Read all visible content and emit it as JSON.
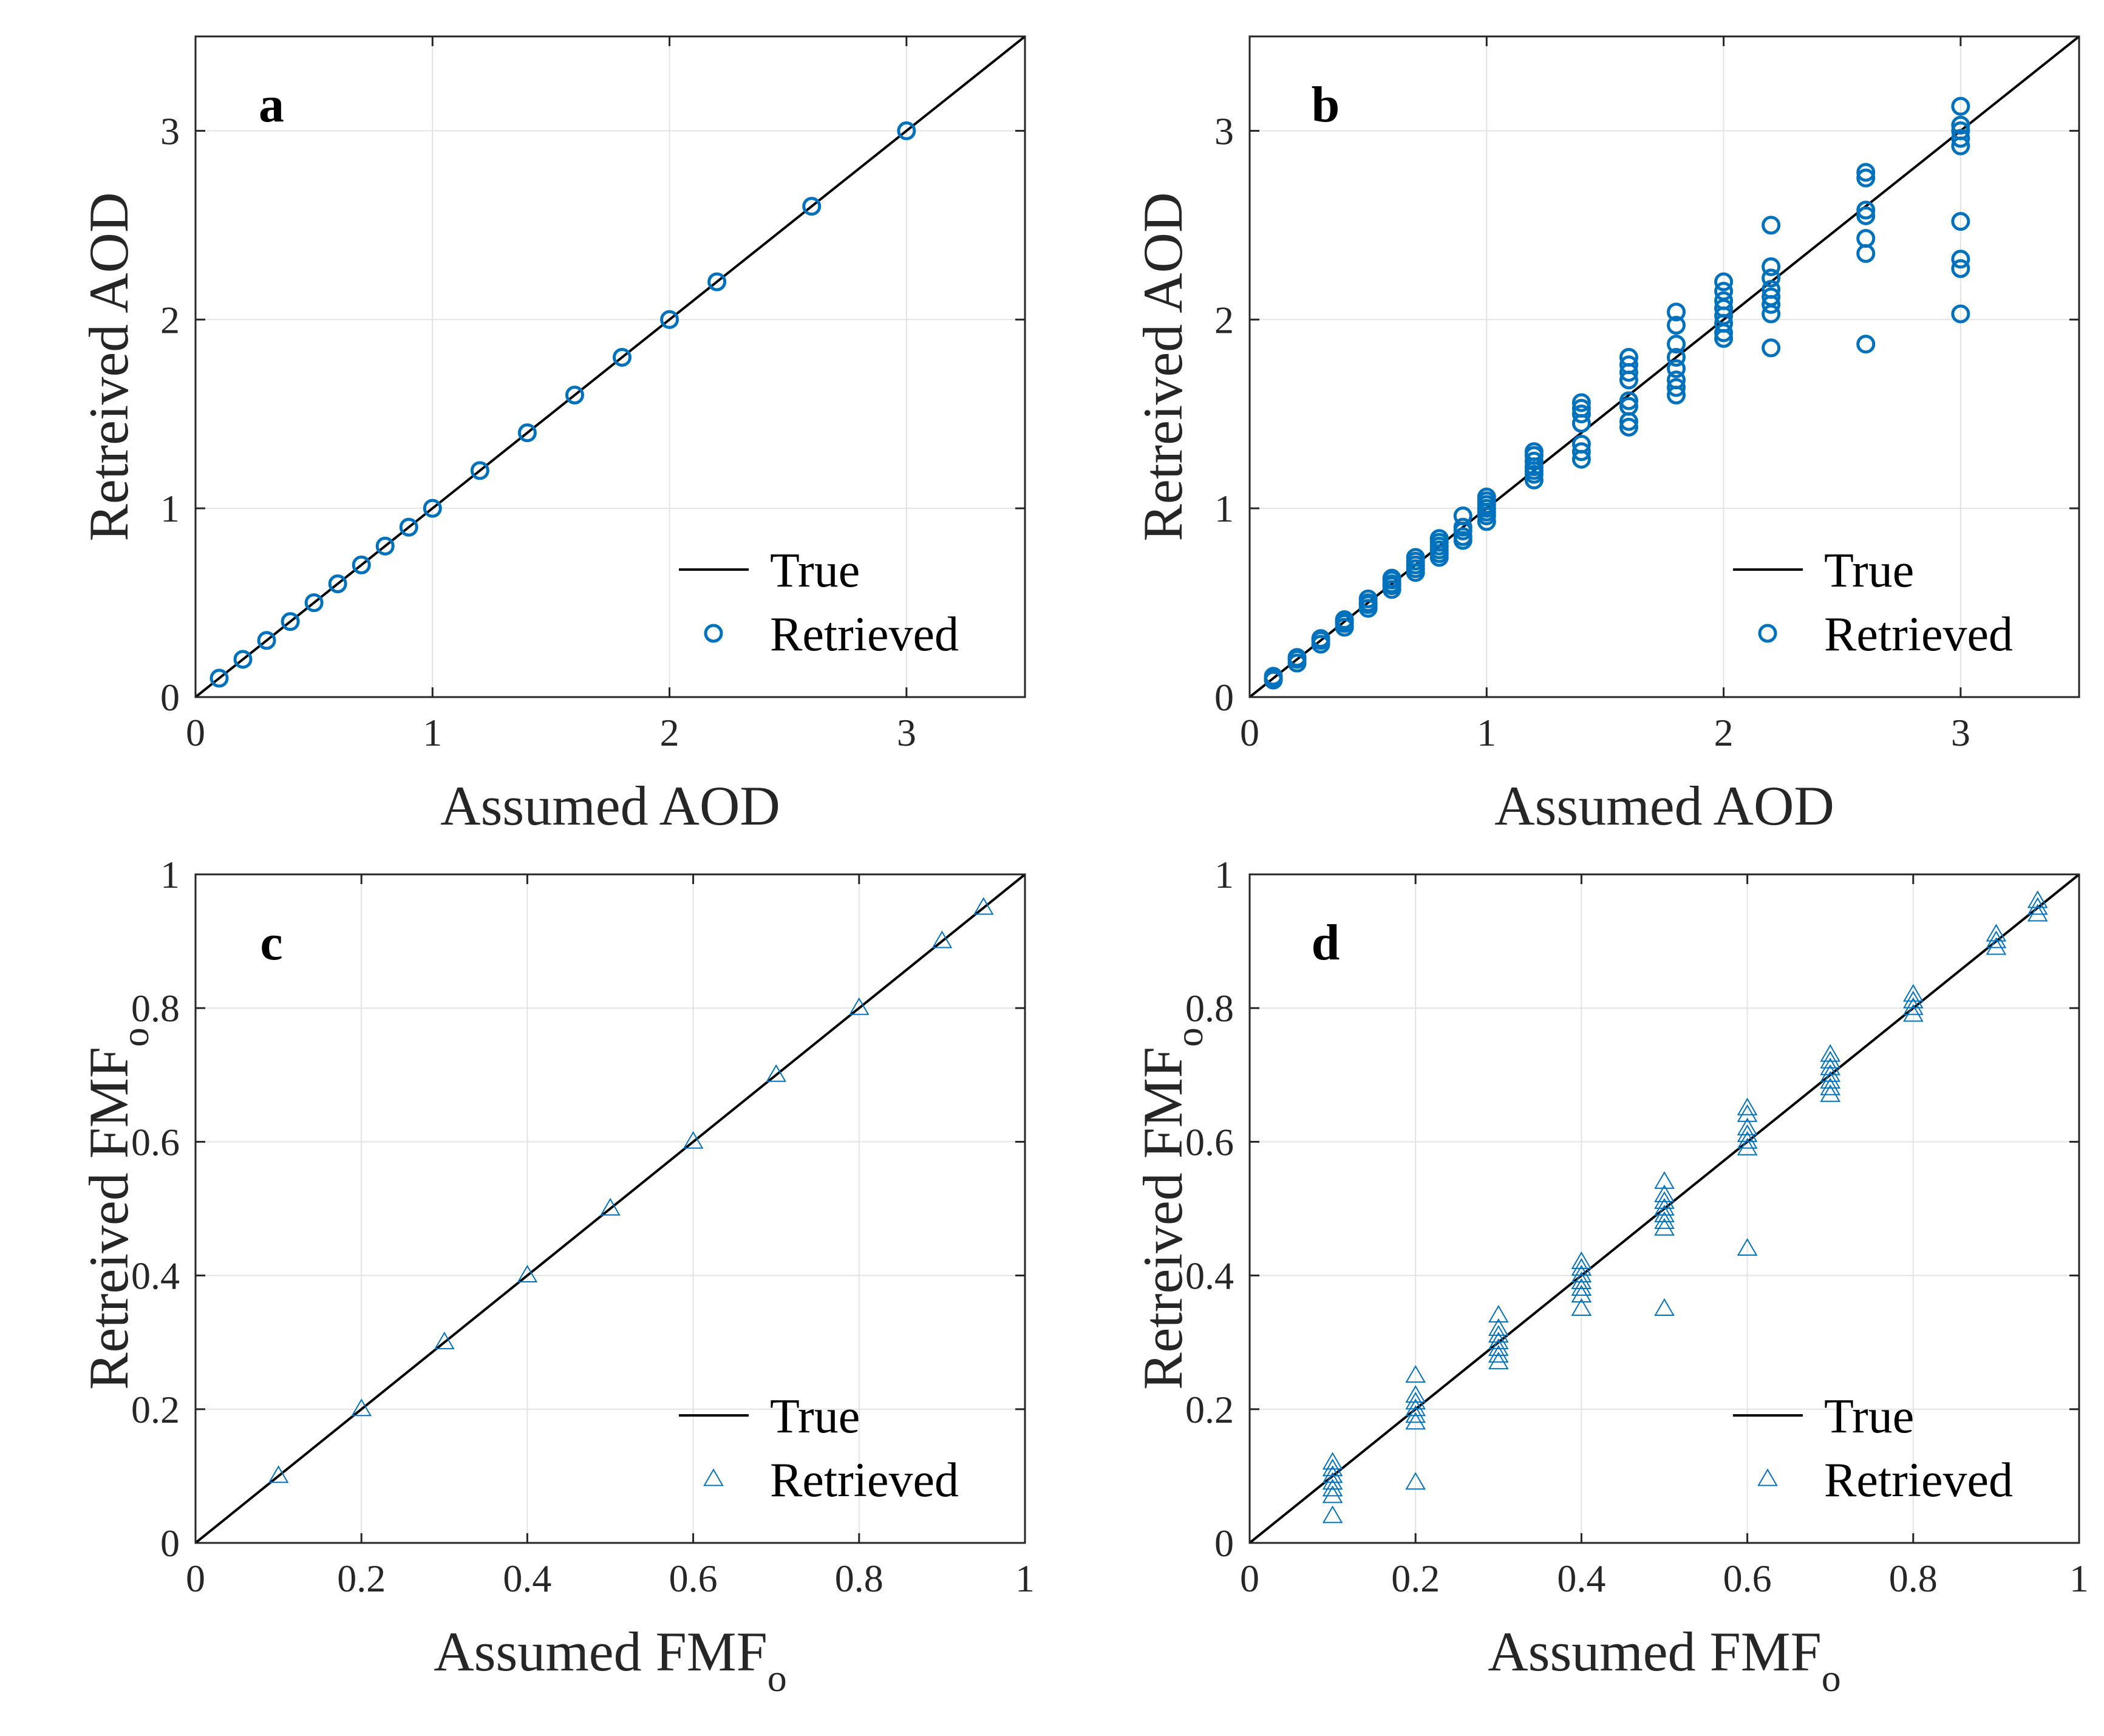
{
  "colors": {
    "marker": "#0072BD",
    "true_line": "#000000",
    "grid": "#e3e3e3",
    "axis": "#262626"
  },
  "chart_data": [
    {
      "panel": "a",
      "type": "scatter",
      "xlabel": "Assumed AOD",
      "ylabel": "Retreived AOD",
      "xlim": [
        0,
        3.5
      ],
      "ylim": [
        0,
        3.5
      ],
      "xticks": [
        0,
        1,
        2,
        3
      ],
      "yticks": [
        0,
        1,
        2,
        3
      ],
      "xtick_labels": [
        "0",
        "1",
        "2",
        "3"
      ],
      "ytick_labels": [
        "0",
        "1",
        "2",
        "3"
      ],
      "grid": true,
      "legend": {
        "position": "bottom-right",
        "entries": [
          "True",
          "Retrieved"
        ]
      },
      "series": [
        {
          "name": "True",
          "kind": "line",
          "x": [
            0,
            3.5
          ],
          "y": [
            0,
            3.5
          ]
        },
        {
          "name": "Retrieved",
          "kind": "scatter",
          "marker": "circle",
          "points": [
            [
              0.1,
              0.1
            ],
            [
              0.2,
              0.2
            ],
            [
              0.3,
              0.3
            ],
            [
              0.4,
              0.4
            ],
            [
              0.5,
              0.5
            ],
            [
              0.6,
              0.6
            ],
            [
              0.7,
              0.7
            ],
            [
              0.8,
              0.8
            ],
            [
              0.9,
              0.9
            ],
            [
              1.0,
              1.0
            ],
            [
              1.2,
              1.2
            ],
            [
              1.4,
              1.4
            ],
            [
              1.6,
              1.6
            ],
            [
              1.8,
              1.8
            ],
            [
              2.0,
              2.0
            ],
            [
              2.2,
              2.2
            ],
            [
              2.6,
              2.6
            ],
            [
              3.0,
              3.0
            ]
          ]
        }
      ]
    },
    {
      "panel": "b",
      "type": "scatter",
      "xlabel": "Assumed AOD",
      "ylabel": "Retreived AOD",
      "xlim": [
        0,
        3.5
      ],
      "ylim": [
        0,
        3.5
      ],
      "xticks": [
        0,
        1,
        2,
        3
      ],
      "yticks": [
        0,
        1,
        2,
        3
      ],
      "xtick_labels": [
        "0",
        "1",
        "2",
        "3"
      ],
      "ytick_labels": [
        "0",
        "1",
        "2",
        "3"
      ],
      "grid": true,
      "legend": {
        "position": "bottom-right",
        "entries": [
          "True",
          "Retrieved"
        ]
      },
      "series": [
        {
          "name": "True",
          "kind": "line",
          "x": [
            0,
            3.5
          ],
          "y": [
            0,
            3.5
          ]
        },
        {
          "name": "Retrieved",
          "kind": "scatter",
          "marker": "circle",
          "points": [
            [
              0.1,
              0.09
            ],
            [
              0.1,
              0.1
            ],
            [
              0.1,
              0.11
            ],
            [
              0.2,
              0.18
            ],
            [
              0.2,
              0.2
            ],
            [
              0.2,
              0.21
            ],
            [
              0.3,
              0.28
            ],
            [
              0.3,
              0.3
            ],
            [
              0.3,
              0.31
            ],
            [
              0.4,
              0.37
            ],
            [
              0.4,
              0.39
            ],
            [
              0.4,
              0.4
            ],
            [
              0.4,
              0.41
            ],
            [
              0.5,
              0.47
            ],
            [
              0.5,
              0.49
            ],
            [
              0.5,
              0.5
            ],
            [
              0.5,
              0.52
            ],
            [
              0.6,
              0.57
            ],
            [
              0.6,
              0.59
            ],
            [
              0.6,
              0.6
            ],
            [
              0.6,
              0.62
            ],
            [
              0.6,
              0.63
            ],
            [
              0.7,
              0.66
            ],
            [
              0.7,
              0.68
            ],
            [
              0.7,
              0.7
            ],
            [
              0.7,
              0.72
            ],
            [
              0.7,
              0.74
            ],
            [
              0.8,
              0.74
            ],
            [
              0.8,
              0.76
            ],
            [
              0.8,
              0.78
            ],
            [
              0.8,
              0.8
            ],
            [
              0.8,
              0.82
            ],
            [
              0.8,
              0.84
            ],
            [
              0.9,
              0.83
            ],
            [
              0.9,
              0.85
            ],
            [
              0.9,
              0.88
            ],
            [
              0.9,
              0.9
            ],
            [
              0.9,
              0.96
            ],
            [
              1.0,
              0.93
            ],
            [
              1.0,
              0.96
            ],
            [
              1.0,
              0.98
            ],
            [
              1.0,
              1.0
            ],
            [
              1.0,
              1.02
            ],
            [
              1.0,
              1.04
            ],
            [
              1.0,
              1.06
            ],
            [
              1.2,
              1.15
            ],
            [
              1.2,
              1.18
            ],
            [
              1.2,
              1.2
            ],
            [
              1.2,
              1.22
            ],
            [
              1.2,
              1.25
            ],
            [
              1.2,
              1.28
            ],
            [
              1.2,
              1.3
            ],
            [
              1.4,
              1.26
            ],
            [
              1.4,
              1.3
            ],
            [
              1.4,
              1.34
            ],
            [
              1.4,
              1.45
            ],
            [
              1.4,
              1.5
            ],
            [
              1.4,
              1.53
            ],
            [
              1.4,
              1.56
            ],
            [
              1.6,
              1.43
            ],
            [
              1.6,
              1.46
            ],
            [
              1.6,
              1.54
            ],
            [
              1.6,
              1.57
            ],
            [
              1.6,
              1.68
            ],
            [
              1.6,
              1.72
            ],
            [
              1.6,
              1.76
            ],
            [
              1.6,
              1.8
            ],
            [
              1.8,
              1.6
            ],
            [
              1.8,
              1.64
            ],
            [
              1.8,
              1.68
            ],
            [
              1.8,
              1.74
            ],
            [
              1.8,
              1.8
            ],
            [
              1.8,
              1.87
            ],
            [
              1.8,
              1.97
            ],
            [
              1.8,
              2.04
            ],
            [
              2.0,
              1.9
            ],
            [
              2.0,
              1.93
            ],
            [
              2.0,
              1.98
            ],
            [
              2.0,
              2.02
            ],
            [
              2.0,
              2.06
            ],
            [
              2.0,
              2.1
            ],
            [
              2.0,
              2.15
            ],
            [
              2.0,
              2.2
            ],
            [
              2.2,
              1.85
            ],
            [
              2.2,
              2.03
            ],
            [
              2.2,
              2.08
            ],
            [
              2.2,
              2.12
            ],
            [
              2.2,
              2.16
            ],
            [
              2.2,
              2.22
            ],
            [
              2.2,
              2.28
            ],
            [
              2.2,
              2.5
            ],
            [
              2.6,
              1.87
            ],
            [
              2.6,
              2.35
            ],
            [
              2.6,
              2.43
            ],
            [
              2.6,
              2.55
            ],
            [
              2.6,
              2.58
            ],
            [
              2.6,
              2.75
            ],
            [
              2.6,
              2.78
            ],
            [
              3.0,
              2.03
            ],
            [
              3.0,
              2.27
            ],
            [
              3.0,
              2.32
            ],
            [
              3.0,
              2.52
            ],
            [
              3.0,
              2.92
            ],
            [
              3.0,
              2.96
            ],
            [
              3.0,
              3.0
            ],
            [
              3.0,
              3.03
            ],
            [
              3.0,
              3.13
            ]
          ]
        }
      ]
    },
    {
      "panel": "c",
      "type": "scatter",
      "xlabel": "Assumed FMF",
      "xlabel_sub": "o",
      "ylabel": "Retreived FMF",
      "ylabel_sub": "o",
      "xlim": [
        0,
        1
      ],
      "ylim": [
        0,
        1
      ],
      "xticks": [
        0,
        0.2,
        0.4,
        0.6,
        0.8,
        1
      ],
      "yticks": [
        0,
        0.2,
        0.4,
        0.6,
        0.8,
        1
      ],
      "xtick_labels": [
        "0",
        "0.2",
        "0.4",
        "0.6",
        "0.8",
        "1"
      ],
      "ytick_labels": [
        "0",
        "0.2",
        "0.4",
        "0.6",
        "0.8",
        "1"
      ],
      "grid": true,
      "legend": {
        "position": "bottom-right",
        "entries": [
          "True",
          "Retrieved"
        ]
      },
      "series": [
        {
          "name": "True",
          "kind": "line",
          "x": [
            0,
            1
          ],
          "y": [
            0,
            1
          ]
        },
        {
          "name": "Retrieved",
          "kind": "scatter",
          "marker": "triangle",
          "points": [
            [
              0.1,
              0.1
            ],
            [
              0.2,
              0.2
            ],
            [
              0.3,
              0.3
            ],
            [
              0.4,
              0.4
            ],
            [
              0.5,
              0.5
            ],
            [
              0.6,
              0.6
            ],
            [
              0.7,
              0.7
            ],
            [
              0.8,
              0.8
            ],
            [
              0.9,
              0.9
            ],
            [
              0.95,
              0.95
            ]
          ]
        }
      ]
    },
    {
      "panel": "d",
      "type": "scatter",
      "xlabel": "Assumed FMF",
      "xlabel_sub": "o",
      "ylabel": "Retreived FMF",
      "ylabel_sub": "o",
      "xlim": [
        0,
        1
      ],
      "ylim": [
        0,
        1
      ],
      "xticks": [
        0,
        0.2,
        0.4,
        0.6,
        0.8,
        1
      ],
      "yticks": [
        0,
        0.2,
        0.4,
        0.6,
        0.8,
        1
      ],
      "xtick_labels": [
        "0",
        "0.2",
        "0.4",
        "0.6",
        "0.8",
        "1"
      ],
      "ytick_labels": [
        "0",
        "0.2",
        "0.4",
        "0.6",
        "0.8",
        "1"
      ],
      "grid": true,
      "legend": {
        "position": "bottom-right",
        "entries": [
          "True",
          "Retrieved"
        ]
      },
      "series": [
        {
          "name": "True",
          "kind": "line",
          "x": [
            0,
            1
          ],
          "y": [
            0,
            1
          ]
        },
        {
          "name": "Retrieved",
          "kind": "scatter",
          "marker": "triangle",
          "points": [
            [
              0.1,
              0.04
            ],
            [
              0.1,
              0.07
            ],
            [
              0.1,
              0.08
            ],
            [
              0.1,
              0.09
            ],
            [
              0.1,
              0.1
            ],
            [
              0.1,
              0.11
            ],
            [
              0.1,
              0.12
            ],
            [
              0.2,
              0.09
            ],
            [
              0.2,
              0.18
            ],
            [
              0.2,
              0.19
            ],
            [
              0.2,
              0.2
            ],
            [
              0.2,
              0.21
            ],
            [
              0.2,
              0.22
            ],
            [
              0.2,
              0.25
            ],
            [
              0.3,
              0.27
            ],
            [
              0.3,
              0.28
            ],
            [
              0.3,
              0.29
            ],
            [
              0.3,
              0.3
            ],
            [
              0.3,
              0.31
            ],
            [
              0.3,
              0.32
            ],
            [
              0.3,
              0.34
            ],
            [
              0.4,
              0.35
            ],
            [
              0.4,
              0.37
            ],
            [
              0.4,
              0.38
            ],
            [
              0.4,
              0.39
            ],
            [
              0.4,
              0.4
            ],
            [
              0.4,
              0.41
            ],
            [
              0.4,
              0.42
            ],
            [
              0.5,
              0.35
            ],
            [
              0.5,
              0.47
            ],
            [
              0.5,
              0.48
            ],
            [
              0.5,
              0.49
            ],
            [
              0.5,
              0.5
            ],
            [
              0.5,
              0.51
            ],
            [
              0.5,
              0.52
            ],
            [
              0.5,
              0.54
            ],
            [
              0.6,
              0.44
            ],
            [
              0.6,
              0.59
            ],
            [
              0.6,
              0.6
            ],
            [
              0.6,
              0.61
            ],
            [
              0.6,
              0.62
            ],
            [
              0.6,
              0.64
            ],
            [
              0.6,
              0.65
            ],
            [
              0.7,
              0.67
            ],
            [
              0.7,
              0.68
            ],
            [
              0.7,
              0.69
            ],
            [
              0.7,
              0.7
            ],
            [
              0.7,
              0.71
            ],
            [
              0.7,
              0.72
            ],
            [
              0.7,
              0.73
            ],
            [
              0.8,
              0.79
            ],
            [
              0.8,
              0.8
            ],
            [
              0.8,
              0.81
            ],
            [
              0.8,
              0.82
            ],
            [
              0.9,
              0.89
            ],
            [
              0.9,
              0.9
            ],
            [
              0.9,
              0.91
            ],
            [
              0.95,
              0.94
            ],
            [
              0.95,
              0.95
            ],
            [
              0.95,
              0.96
            ]
          ]
        }
      ]
    }
  ]
}
